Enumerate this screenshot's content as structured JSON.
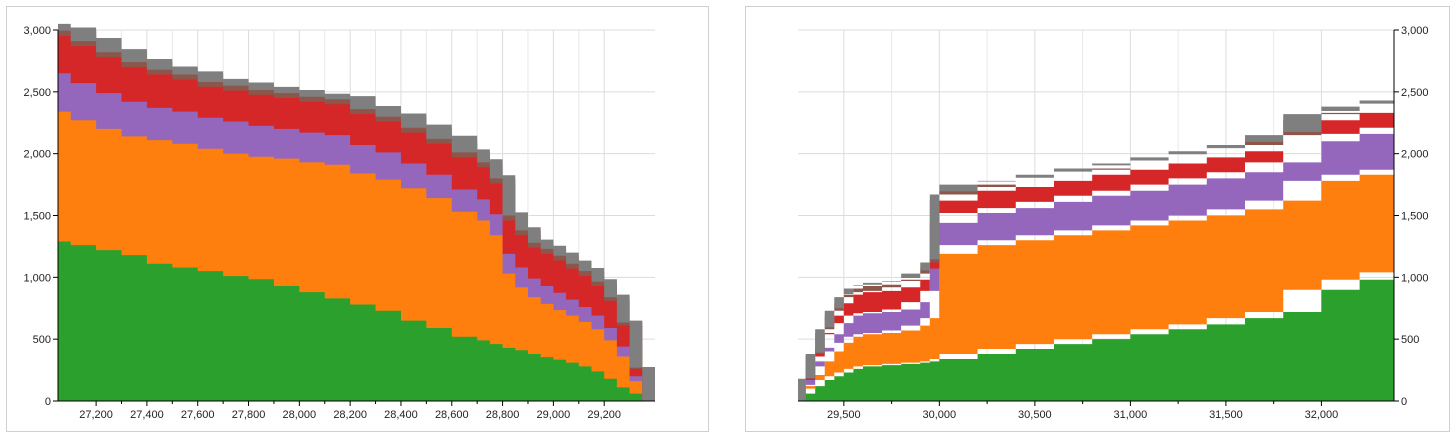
{
  "chart_data": [
    {
      "type": "area",
      "stacked": true,
      "step": true,
      "grid": true,
      "x_axis": "bottom",
      "y_axis": "left",
      "xlim": [
        27050,
        29400
      ],
      "ylim": [
        0,
        3000
      ],
      "x_ticks": [
        27200,
        27400,
        27600,
        27800,
        28000,
        28200,
        28400,
        28600,
        28800,
        29000,
        29200
      ],
      "x_tick_labels": [
        "27,200",
        "27,400",
        "27,600",
        "27,800",
        "28,000",
        "28,200",
        "28,400",
        "28,600",
        "28,800",
        "29,000",
        "29,200"
      ],
      "y_ticks": [
        0,
        500,
        1000,
        1500,
        2000,
        2500,
        3000
      ],
      "y_tick_labels": [
        "0",
        "500",
        "1,000",
        "1,500",
        "2,000",
        "2,500",
        "3,000"
      ],
      "x": [
        27050,
        27100,
        27200,
        27300,
        27400,
        27500,
        27600,
        27700,
        27800,
        27900,
        28000,
        28100,
        28200,
        28300,
        28400,
        28500,
        28600,
        28700,
        28750,
        28800,
        28850,
        28900,
        28950,
        29000,
        29050,
        29100,
        29150,
        29200,
        29250,
        29300,
        29350,
        29400
      ],
      "series": [
        {
          "color": "#2ca02c",
          "values": [
            1300,
            1290,
            1260,
            1220,
            1180,
            1110,
            1080,
            1050,
            1010,
            985,
            930,
            880,
            830,
            780,
            730,
            650,
            590,
            520,
            490,
            460,
            430,
            410,
            380,
            355,
            335,
            310,
            280,
            240,
            180,
            110,
            60,
            0
          ]
        },
        {
          "color": "#ff7f0e",
          "values": [
            1050,
            1050,
            1010,
            980,
            960,
            1000,
            1000,
            990,
            990,
            990,
            1030,
            1050,
            1080,
            1060,
            1060,
            1070,
            1050,
            1010,
            970,
            880,
            600,
            510,
            460,
            430,
            400,
            380,
            360,
            340,
            310,
            250,
            100,
            0
          ]
        },
        {
          "color": "#9467bd",
          "values": [
            320,
            310,
            300,
            290,
            280,
            260,
            260,
            250,
            260,
            250,
            240,
            240,
            240,
            230,
            220,
            200,
            190,
            180,
            170,
            170,
            160,
            160,
            150,
            145,
            140,
            130,
            120,
            110,
            100,
            80,
            40,
            0
          ]
        },
        {
          "color": "#d62728",
          "values": [
            310,
            300,
            300,
            290,
            280,
            270,
            260,
            250,
            250,
            250,
            250,
            250,
            250,
            250,
            250,
            250,
            250,
            260,
            260,
            250,
            270,
            260,
            250,
            260,
            260,
            250,
            250,
            240,
            220,
            170,
            60,
            0
          ]
        },
        {
          "color": "#8c564b",
          "values": [
            45,
            45,
            40,
            40,
            40,
            40,
            40,
            40,
            40,
            40,
            40,
            40,
            40,
            40,
            40,
            40,
            40,
            40,
            40,
            40,
            40,
            40,
            40,
            40,
            40,
            40,
            40,
            35,
            30,
            25,
            10,
            0
          ]
        },
        {
          "color": "#7f7f7f",
          "values": [
            25,
            25,
            25,
            25,
            25,
            25,
            25,
            25,
            25,
            25,
            25,
            25,
            25,
            25,
            25,
            25,
            25,
            25,
            25,
            25,
            25,
            25,
            25,
            25,
            25,
            25,
            25,
            20,
            20,
            15,
            5,
            0
          ]
        }
      ]
    },
    {
      "type": "area",
      "stacked": true,
      "step": true,
      "grid": true,
      "x_axis": "bottom",
      "y_axis": "right",
      "xlim": [
        29260,
        32380
      ],
      "ylim": [
        0,
        3000
      ],
      "x_ticks": [
        29500,
        30000,
        30500,
        31000,
        31500,
        32000
      ],
      "x_tick_labels": [
        "29,500",
        "30,000",
        "30,500",
        "31,000",
        "31,500",
        "32,000"
      ],
      "y_ticks": [
        0,
        500,
        1000,
        1500,
        2000,
        2500,
        3000
      ],
      "y_tick_labels": [
        "0",
        "500",
        "1,000",
        "1,500",
        "2,000",
        "2,500",
        "3,000"
      ],
      "x": [
        29260,
        29300,
        29350,
        29400,
        29450,
        29500,
        29550,
        29600,
        29700,
        29800,
        29900,
        29950,
        30000,
        30200,
        30400,
        30600,
        30800,
        31000,
        31200,
        31400,
        31600,
        31800,
        32000,
        32200,
        32380
      ],
      "series": [
        {
          "color": "#2ca02c",
          "values": [
            0,
            60,
            120,
            170,
            200,
            230,
            260,
            280,
            290,
            300,
            310,
            320,
            340,
            380,
            420,
            460,
            500,
            540,
            580,
            620,
            670,
            720,
            900,
            980,
            1040
          ]
        },
        {
          "color": "#ff7f0e",
          "values": [
            0,
            40,
            90,
            150,
            200,
            240,
            260,
            260,
            260,
            270,
            300,
            350,
            850,
            880,
            880,
            880,
            880,
            880,
            880,
            880,
            880,
            900,
            880,
            850,
            830
          ]
        },
        {
          "color": "#9467bd",
          "values": [
            0,
            30,
            70,
            110,
            140,
            160,
            170,
            170,
            170,
            170,
            190,
            220,
            250,
            260,
            260,
            270,
            280,
            280,
            290,
            300,
            300,
            310,
            320,
            330,
            340
          ]
        },
        {
          "color": "#d62728",
          "values": [
            0,
            40,
            80,
            120,
            150,
            160,
            170,
            170,
            170,
            180,
            180,
            180,
            180,
            180,
            170,
            170,
            170,
            170,
            170,
            170,
            170,
            170,
            170,
            170,
            170
          ]
        },
        {
          "color": "#8c564b",
          "values": [
            0,
            10,
            20,
            30,
            40,
            50,
            50,
            50,
            50,
            50,
            50,
            50,
            50,
            50,
            50,
            50,
            50,
            50,
            50,
            50,
            50,
            50,
            50,
            50,
            50
          ]
        },
        {
          "color": "#7f7f7f",
          "values": [
            0,
            5,
            10,
            15,
            20,
            25,
            25,
            25,
            25,
            25,
            25,
            25,
            25,
            25,
            25,
            25,
            25,
            25,
            25,
            25,
            25,
            25,
            25,
            25,
            25
          ]
        }
      ]
    }
  ]
}
